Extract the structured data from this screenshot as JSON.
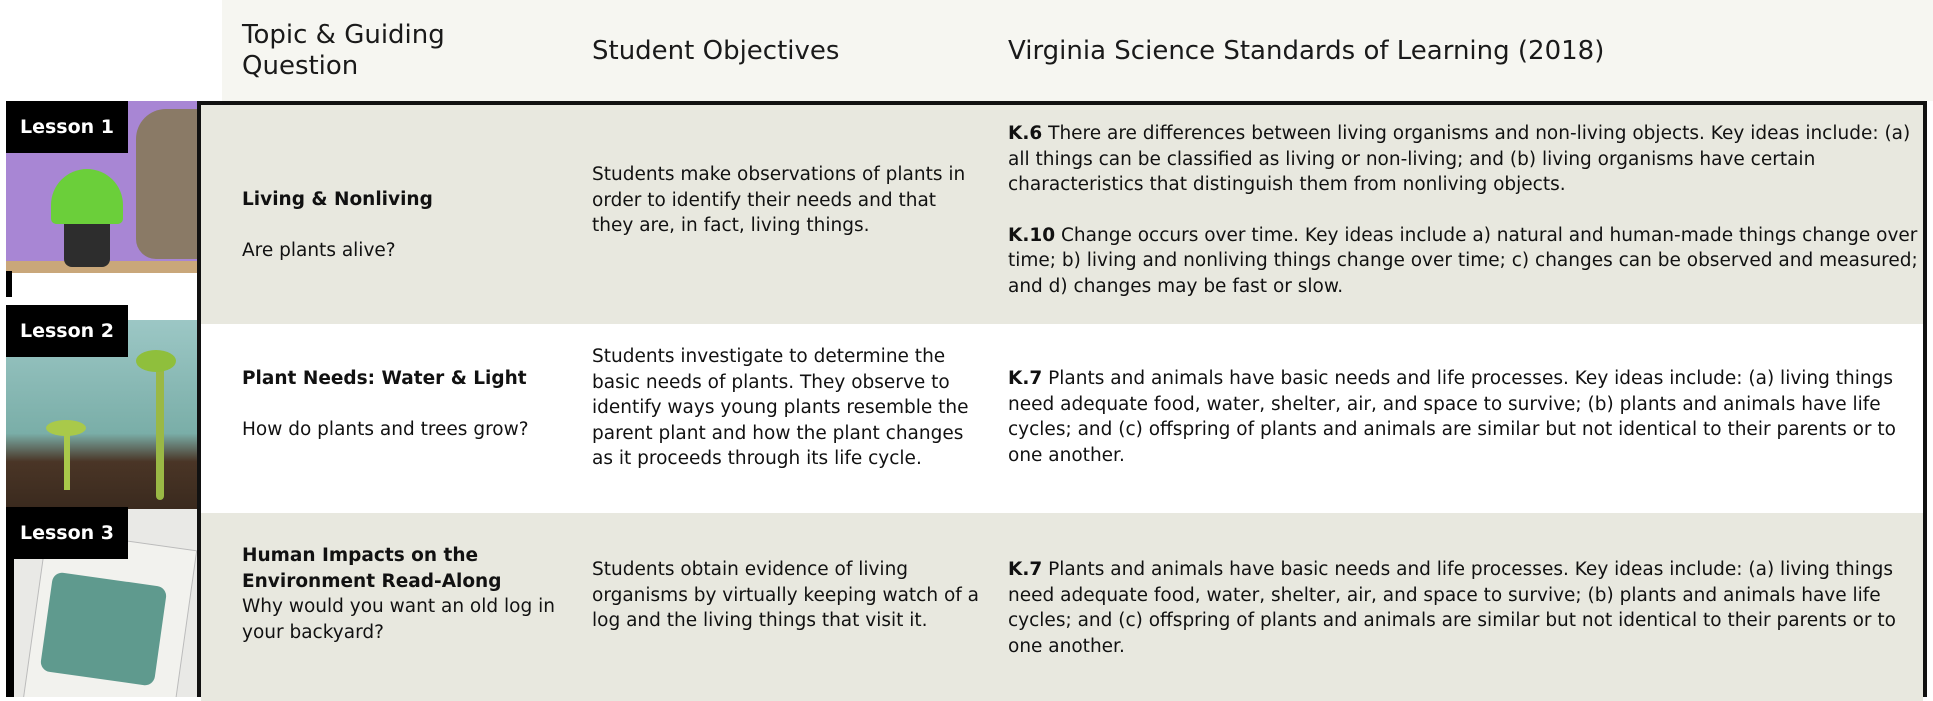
{
  "header": {
    "topic_heading": "Topic & Guiding Question",
    "objectives_heading": "Student Objectives",
    "standards_heading": "Virginia Science Standards of Learning (2018)"
  },
  "lessons": [
    {
      "badge": "Lesson 1",
      "topic": "Living & Nonliving",
      "question": "Are plants alive?",
      "objectives": "Students make observations of plants in order to identify their needs and that they are, in fact, living things.",
      "standards": [
        {
          "code": "K.6",
          "text": "There are differences between living organisms and non-living objects. Key ideas include: (a) all things can be classified as living or non-living; and (b) living organisms have certain characteristics that distinguish them from nonliving objects."
        },
        {
          "code": "K.10",
          "text": "Change occurs over time. Key ideas include a) natural and human-made things change over time; b) living and nonliving things change over time; c) changes can be observed and measured; and d) changes may be fast or slow."
        }
      ]
    },
    {
      "badge": "Lesson 2",
      "topic": "Plant Needs: Water & Light",
      "question": "How do plants and trees grow?",
      "objectives": "Students investigate to determine the basic needs of plants. They observe to identify ways young plants resemble the parent plant and how the plant changes as it proceeds through its life cycle.",
      "standards": [
        {
          "code": "K.7",
          "text": "Plants and animals have basic needs and life processes. Key ideas include: (a) living things need adequate food, water, shelter, air, and space to survive; (b) plants and animals have life cycles; and (c) offspring of plants and animals are similar but not identical to their parents or to one another."
        }
      ]
    },
    {
      "badge": "Lesson 3",
      "topic": "Human Impacts on the Environment Read-Along",
      "question": "Why would you want an old log in your backyard?",
      "objectives": "Students obtain evidence of living organisms by virtually keeping watch of a log and the living things that visit it.",
      "standards": [
        {
          "code": "K.7",
          "text": "Plants and animals have basic needs and life processes. Key ideas include: (a) living things need adequate food, water, shelter, air, and space to survive; (b) plants and animals have life cycles; and (c) offspring of plants and animals are similar but not identical to their parents or to one another."
        }
      ]
    }
  ]
}
